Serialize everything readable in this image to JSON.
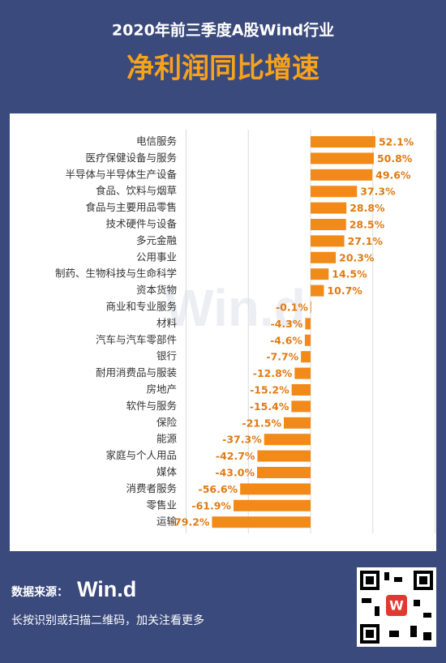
{
  "header": {
    "title": "2020年前三季度A股Wind行业",
    "subtitle": "净利润同比增速"
  },
  "chart_data": {
    "type": "bar",
    "orientation": "horizontal",
    "categories": [
      "电信服务",
      "医疗保健设备与服务",
      "半导体与半导体生产设备",
      "食品、饮料与烟草",
      "食品与主要用品零售",
      "技术硬件与设备",
      "多元金融",
      "公用事业",
      "制药、生物科技与生命科学",
      "资本货物",
      "商业和专业服务",
      "材料",
      "汽车与汽车零部件",
      "银行",
      "耐用消费品与服装",
      "房地产",
      "软件与服务",
      "保险",
      "能源",
      "家庭与个人用品",
      "媒体",
      "消费者服务",
      "零售业",
      "运输"
    ],
    "values": [
      52.1,
      50.8,
      49.6,
      37.3,
      28.8,
      28.5,
      27.1,
      20.3,
      14.5,
      10.7,
      -0.1,
      -4.3,
      -4.6,
      -7.7,
      -12.8,
      -15.2,
      -15.4,
      -21.5,
      -37.3,
      -42.7,
      -43.0,
      -56.6,
      -61.9,
      -79.2
    ],
    "value_labels": [
      "52.1%",
      "50.8%",
      "49.6%",
      "37.3%",
      "28.8%",
      "28.5%",
      "27.1%",
      "20.3%",
      "14.5%",
      "10.7%",
      "-0.1%",
      "-4.3%",
      "-4.6%",
      "-7.7%",
      "-12.8%",
      "-15.2%",
      "-15.4%",
      "-21.5%",
      "-37.3%",
      "-42.7%",
      "-43.0%",
      "-56.6%",
      "-61.9%",
      "-79.2%"
    ],
    "color": "#f28a1a",
    "xlim": [
      -100,
      100
    ],
    "xticks": [
      -100,
      -50,
      0,
      50,
      100
    ],
    "grid": true,
    "watermark": "Win.d"
  },
  "footer": {
    "source_label": "数据来源：",
    "source": "Win.d",
    "note": "长按识别或扫描二维码，加关注看更多"
  }
}
